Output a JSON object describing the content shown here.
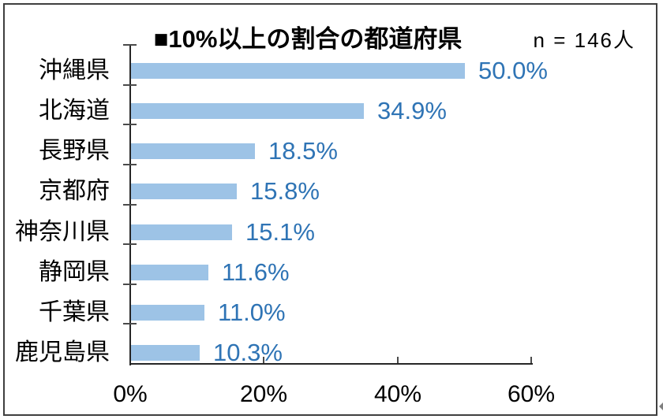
{
  "chart_data": {
    "type": "bar",
    "orientation": "horizontal",
    "title": "■10%以上の割合の都道府県",
    "sample_label": "n = 146人",
    "categories": [
      "沖縄県",
      "北海道",
      "長野県",
      "京都府",
      "神奈川県",
      "静岡県",
      "千葉県",
      "鹿児島県"
    ],
    "values": [
      50.0,
      34.9,
      18.5,
      15.8,
      15.1,
      11.6,
      11.0,
      10.3
    ],
    "value_labels": [
      "50.0%",
      "34.9%",
      "18.5%",
      "15.8%",
      "15.1%",
      "11.6%",
      "11.0%",
      "10.3%"
    ],
    "xlabel": "",
    "ylabel": "",
    "x_tick_labels": [
      "0%",
      "20%",
      "40%",
      "60%"
    ],
    "x_tick_values": [
      0,
      20,
      40,
      60
    ],
    "xlim": [
      0,
      60
    ],
    "grid": false,
    "legend": false
  },
  "colors": {
    "bar": "#9DC3E6",
    "value_label": "#2F74B5",
    "axis": "#262626",
    "tick": "#4a4a4a",
    "text": "#000000",
    "border": "#3f3f3f",
    "background": "#FFFFFF"
  }
}
